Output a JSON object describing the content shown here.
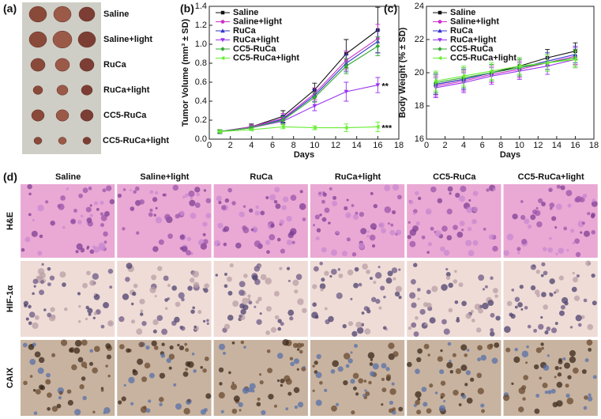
{
  "panel_labels": [
    "(a)",
    "(b)",
    "(c)",
    "(d)"
  ],
  "photo_panel": {
    "rows": [
      "Saline",
      "Saline+light",
      "RuCa",
      "RuCa+light",
      "CC5-RuCa",
      "CC5-RuCa+light"
    ]
  },
  "chart_data": [
    {
      "type": "line",
      "x_label": "Days",
      "y_label": "Tumor Volume (mm³ ± SD)",
      "x": [
        1,
        4,
        7,
        10,
        13,
        16
      ],
      "xlim": [
        0,
        18
      ],
      "xticks": [
        0,
        2,
        4,
        6,
        8,
        10,
        12,
        14,
        16,
        18
      ],
      "ylim": [
        0,
        1.4
      ],
      "yticks": [
        {
          "value": 0,
          "label": "0.0"
        },
        0.2,
        0.4,
        0.6,
        0.8,
        {
          "value": 1,
          "label": "1.0"
        },
        1.2,
        1.4
      ],
      "legend": "top-left",
      "series": [
        {
          "name": "Saline",
          "color": "#111111",
          "marker": "square",
          "values": [
            0.08,
            0.13,
            0.24,
            0.52,
            0.9,
            1.15
          ],
          "errors": [
            0.02,
            0.03,
            0.06,
            0.07,
            0.15,
            0.24
          ]
        },
        {
          "name": "Saline+light",
          "color": "#cc2fcc",
          "marker": "circle",
          "values": [
            0.08,
            0.13,
            0.22,
            0.48,
            0.83,
            1.06
          ],
          "errors": [
            0.02,
            0.02,
            0.05,
            0.06,
            0.1,
            0.15
          ]
        },
        {
          "name": "RuCa",
          "color": "#3333cc",
          "marker": "triangle-up",
          "values": [
            0.08,
            0.12,
            0.21,
            0.46,
            0.8,
            1.03
          ],
          "errors": [
            0.02,
            0.02,
            0.04,
            0.06,
            0.09,
            0.12
          ]
        },
        {
          "name": "RuCa+light",
          "color": "#9933ee",
          "marker": "triangle-down",
          "values": [
            0.08,
            0.12,
            0.19,
            0.35,
            0.5,
            0.57
          ],
          "errors": [
            0.01,
            0.02,
            0.03,
            0.05,
            0.1,
            0.08
          ]
        },
        {
          "name": "CC5-RuCa",
          "color": "#33aa33",
          "marker": "diamond",
          "values": [
            0.08,
            0.12,
            0.2,
            0.44,
            0.77,
            0.98
          ],
          "errors": [
            0.02,
            0.02,
            0.04,
            0.05,
            0.08,
            0.1
          ]
        },
        {
          "name": "CC5-RuCa+light",
          "color": "#66ee33",
          "marker": "triangle-left",
          "values": [
            0.08,
            0.1,
            0.13,
            0.12,
            0.12,
            0.13
          ],
          "errors": [
            0.01,
            0.01,
            0.02,
            0.02,
            0.04,
            0.05
          ]
        }
      ],
      "annotations": [
        "**",
        "***"
      ]
    },
    {
      "type": "line",
      "x_label": "Days",
      "y_label": "Body Weight (% ± SD)",
      "x": [
        1,
        4,
        7,
        10,
        13,
        16
      ],
      "xlim": [
        0,
        18
      ],
      "xticks": [
        0,
        2,
        4,
        6,
        8,
        10,
        12,
        14,
        16,
        18
      ],
      "ylim": [
        16,
        24
      ],
      "yticks": [
        16,
        18,
        20,
        22,
        24
      ],
      "legend": "top-left",
      "series": [
        {
          "name": "Saline",
          "color": "#111111",
          "marker": "square",
          "values": [
            19.3,
            19.6,
            20.0,
            20.4,
            20.9,
            21.3
          ],
          "errors": [
            0.6,
            0.6,
            0.5,
            0.5,
            0.5,
            0.5
          ]
        },
        {
          "name": "Saline+light",
          "color": "#cc2fcc",
          "marker": "circle",
          "values": [
            19.2,
            19.5,
            19.9,
            20.2,
            20.6,
            21.0
          ],
          "errors": [
            0.6,
            0.6,
            0.5,
            0.5,
            0.5,
            0.5
          ]
        },
        {
          "name": "RuCa",
          "color": "#3333cc",
          "marker": "triangle-up",
          "values": [
            19.3,
            19.6,
            20.0,
            20.3,
            20.7,
            21.1
          ],
          "errors": [
            0.6,
            0.6,
            0.5,
            0.5,
            0.5,
            0.5
          ]
        },
        {
          "name": "RuCa+light",
          "color": "#9933ee",
          "marker": "triangle-down",
          "values": [
            19.1,
            19.4,
            19.8,
            20.1,
            20.4,
            20.8
          ],
          "errors": [
            0.6,
            0.6,
            0.5,
            0.5,
            0.5,
            0.5
          ]
        },
        {
          "name": "CC5-RuCa",
          "color": "#33aa33",
          "marker": "diamond",
          "values": [
            19.4,
            19.7,
            20.0,
            20.3,
            20.6,
            20.9
          ],
          "errors": [
            0.6,
            0.6,
            0.5,
            0.5,
            0.5,
            0.5
          ]
        },
        {
          "name": "CC5-RuCa+light",
          "color": "#66ee33",
          "marker": "triangle-left",
          "values": [
            19.5,
            19.8,
            20.1,
            20.4,
            20.6,
            20.8
          ],
          "errors": [
            0.6,
            0.6,
            0.5,
            0.5,
            0.5,
            0.5
          ]
        }
      ]
    }
  ],
  "histology": {
    "columns": [
      "Saline",
      "Saline+light",
      "RuCa",
      "RuCa+light",
      "CC5-RuCa",
      "CC5-RuCa+light"
    ],
    "rows": [
      "H&E",
      "HIF-1α",
      "CAIX"
    ]
  }
}
